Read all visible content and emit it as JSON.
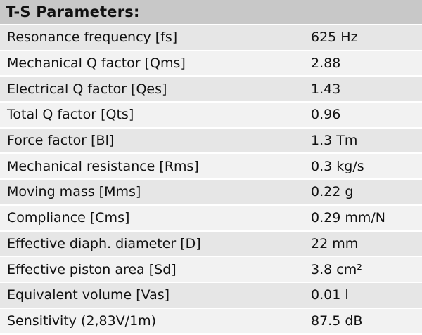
{
  "title": "T-S Parameters:",
  "rows": [
    {
      "label": "Resonance frequency [fs]",
      "value": "625 Hz"
    },
    {
      "label": "Mechanical Q factor [Qms]",
      "value": "2.88"
    },
    {
      "label": "Electrical Q factor [Qes]",
      "value": "1.43"
    },
    {
      "label": "Total Q factor [Qts]",
      "value": "0.96"
    },
    {
      "label": "Force factor [Bl]",
      "value": "1.3 Tm"
    },
    {
      "label": "Mechanical resistance [Rms]",
      "value": "0.3 kg/s"
    },
    {
      "label": "Moving mass [Mms]",
      "value": "0.22 g"
    },
    {
      "label": "Compliance [Cms]",
      "value": "0.29 mm/N"
    },
    {
      "label": "Effective diaph. diameter [D]",
      "value": "22 mm"
    },
    {
      "label": "Effective piston area [Sd]",
      "value": "3.8 cm²"
    },
    {
      "label": "Equivalent volume [Vas]",
      "value": "0.01 l"
    },
    {
      "label": "Sensitivity (2,83V/1m)",
      "value": "87.5 dB"
    }
  ]
}
